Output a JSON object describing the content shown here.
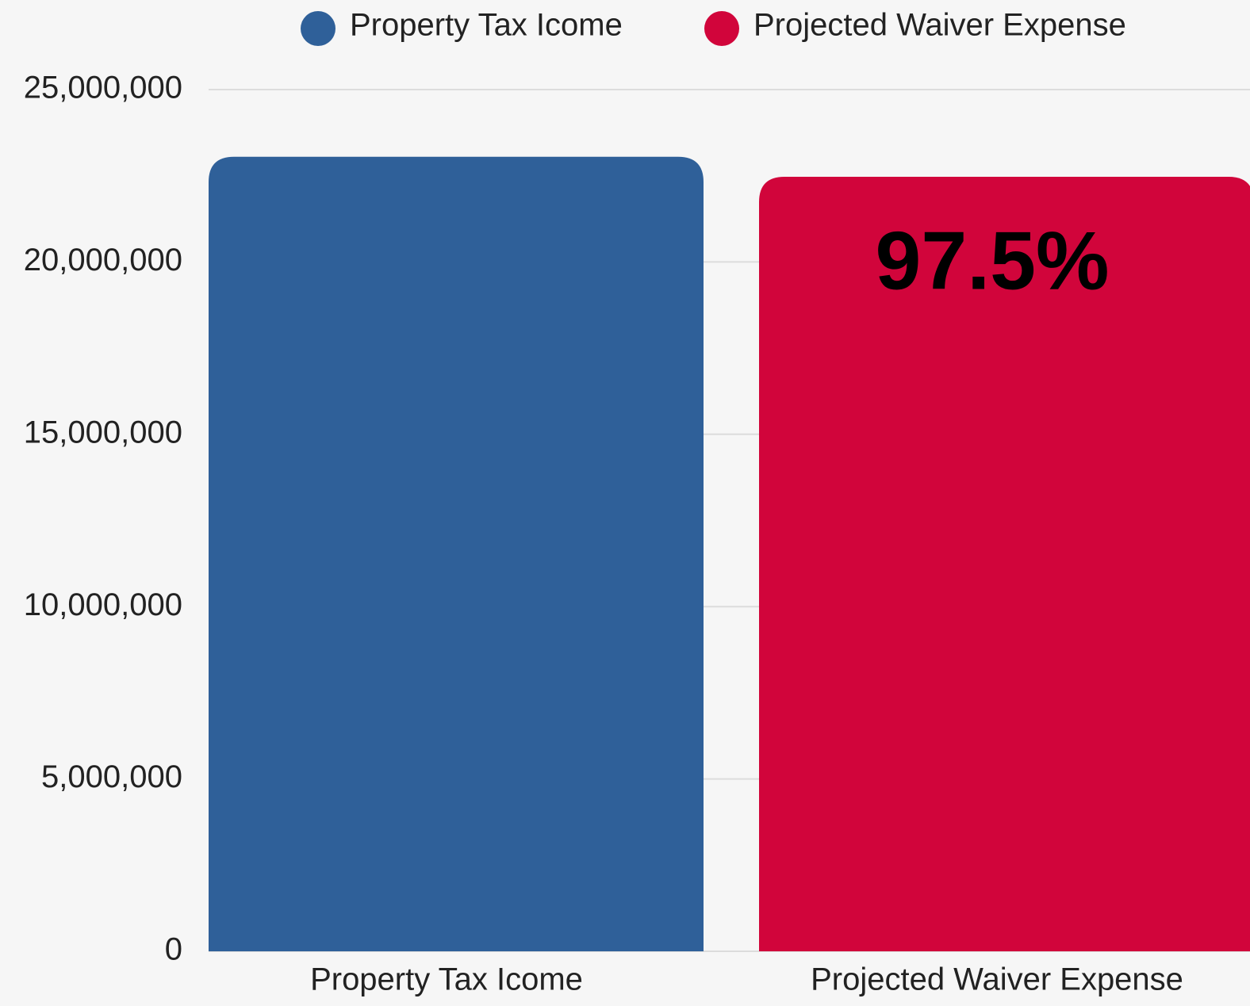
{
  "chart_data": {
    "type": "bar",
    "categories": [
      "Property Tax Icome",
      "Projected Waiver Expense"
    ],
    "values": [
      23050000,
      22470000
    ],
    "colors": [
      "#2f6099",
      "#d1053b"
    ],
    "annotation": "97.5%",
    "ylim": [
      0,
      25000000
    ],
    "yticks": [
      0,
      {
        "value": 5000000,
        "label": "5,000,000"
      },
      {
        "value": 10000000,
        "label": "10,000,000"
      },
      {
        "value": 15000000,
        "label": "15,000,000"
      },
      {
        "value": 20000000,
        "label": "20,000,000"
      },
      {
        "value": 25000000,
        "label": "25,000,000"
      }
    ],
    "grid": true,
    "legend": "top"
  }
}
